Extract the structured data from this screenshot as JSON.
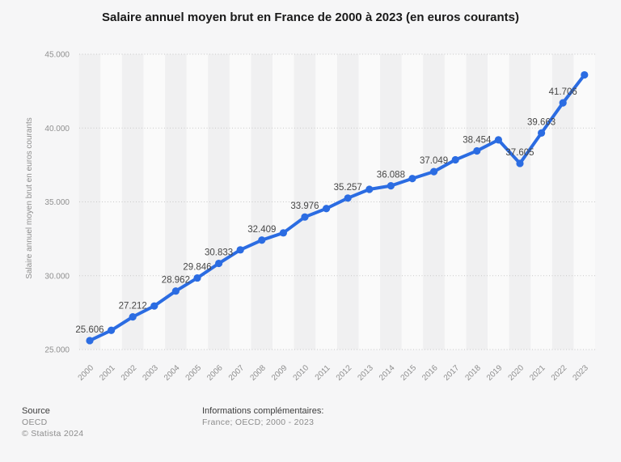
{
  "title": "Salaire annuel moyen brut en France de 2000 à 2023 (en euros courants)",
  "chart_data": {
    "type": "line",
    "title": "Salaire annuel moyen brut en France de 2000 à 2023 (en euros courants)",
    "xlabel": "",
    "ylabel": "Salaire annuel moyen brut en euros courants",
    "ylim": [
      25000,
      45000
    ],
    "grid": "horizontal-dotted",
    "legend": "none",
    "background_bands": "alternating-vertical",
    "categories": [
      "2000",
      "2001",
      "2002",
      "2003",
      "2004",
      "2005",
      "2006",
      "2007",
      "2008",
      "2009",
      "2010",
      "2011",
      "2012",
      "2013",
      "2014",
      "2015",
      "2016",
      "2017",
      "2018",
      "2019",
      "2020",
      "2021",
      "2022",
      "2023"
    ],
    "values": [
      25606,
      26300,
      27212,
      27950,
      28962,
      29846,
      30833,
      31750,
      32409,
      32900,
      33976,
      34550,
      35257,
      35850,
      36088,
      36580,
      37049,
      37850,
      38454,
      39200,
      37605,
      39663,
      41706,
      43600
    ],
    "point_labels": [
      "25.606",
      null,
      "27.212",
      null,
      "28.962",
      "29.846",
      "30.833",
      null,
      "32.409",
      null,
      "33.976",
      null,
      "35.257",
      null,
      "36.088",
      null,
      "37.049",
      null,
      "38.454",
      null,
      "37.605",
      "39.663",
      "41.706",
      null
    ],
    "y_ticks": {
      "values": [
        45000,
        40000,
        35000,
        30000,
        25000
      ],
      "labels": [
        "45.000",
        "40.000",
        "35.000",
        "30.000",
        "25.000"
      ]
    },
    "colors": {
      "line": "#2b6ce2",
      "marker": "#2b6ce2",
      "stripe_dark": "#f0f0f1",
      "stripe_light": "#fafafa",
      "grid": "#c8c8c8",
      "tick_text": "#8f8f8f",
      "label_text": "#474747"
    }
  },
  "footer": {
    "source_heading": "Source",
    "source_lines": [
      "OECD",
      "© Statista 2024"
    ],
    "info_heading": "Informations complémentaires:",
    "info_value": "France; OECD; 2000 - 2023"
  }
}
